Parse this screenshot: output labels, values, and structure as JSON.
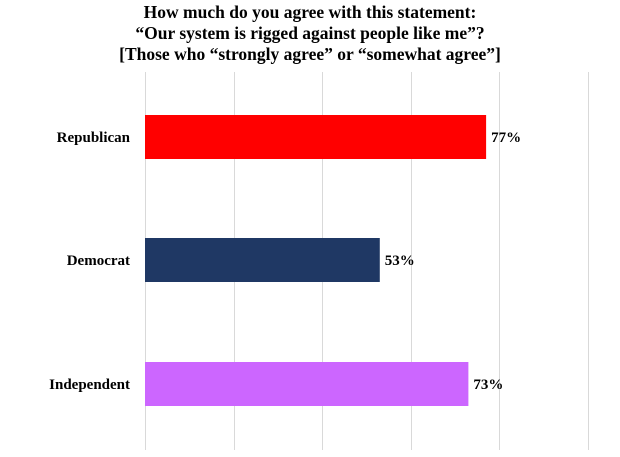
{
  "chart_data": {
    "type": "bar",
    "orientation": "horizontal",
    "title": [
      "How much do you agree with this statement:",
      "“Our system is rigged against people like me”?",
      "[Those who “strongly agree” or “somewhat agree”]"
    ],
    "categories": [
      "Republican",
      "Democrat",
      "Independent"
    ],
    "values": [
      77,
      53,
      73
    ],
    "value_labels": [
      "77%",
      "53%",
      "73%"
    ],
    "colors": [
      "#ff0000",
      "#1f3864",
      "#cc66ff"
    ],
    "xlim": [
      0,
      100
    ],
    "x_gridlines": [
      0,
      20,
      40,
      60,
      80,
      100
    ],
    "grid": true,
    "legend": "none"
  }
}
